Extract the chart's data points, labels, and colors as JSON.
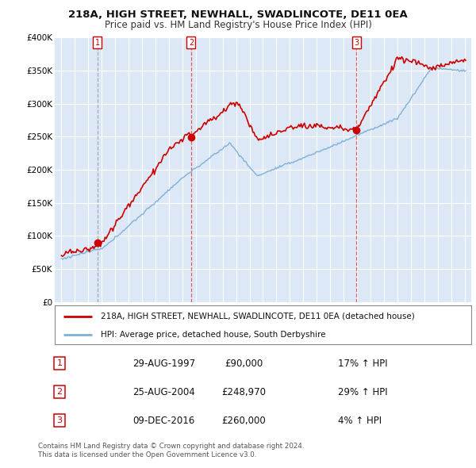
{
  "title_line1": "218A, HIGH STREET, NEWHALL, SWADLINCOTE, DE11 0EA",
  "title_line2": "Price paid vs. HM Land Registry's House Price Index (HPI)",
  "legend_line1": "218A, HIGH STREET, NEWHALL, SWADLINCOTE, DE11 0EA (detached house)",
  "legend_line2": "HPI: Average price, detached house, South Derbyshire",
  "footer_line1": "Contains HM Land Registry data © Crown copyright and database right 2024.",
  "footer_line2": "This data is licensed under the Open Government Licence v3.0.",
  "transactions": [
    {
      "num": 1,
      "date_label": "29-AUG-1997",
      "price_label": "£90,000",
      "hpi_label": "17% ↑ HPI",
      "year": 1997.66,
      "price": 90000,
      "vline_style": "dashed_gray"
    },
    {
      "num": 2,
      "date_label": "25-AUG-2004",
      "price_label": "£248,970",
      "hpi_label": "29% ↑ HPI",
      "year": 2004.65,
      "price": 248970,
      "vline_style": "dashed_red"
    },
    {
      "num": 3,
      "date_label": "09-DEC-2016",
      "price_label": "£260,000",
      "hpi_label": "4% ↑ HPI",
      "year": 2016.94,
      "price": 260000,
      "vline_style": "dashed_red"
    }
  ],
  "property_color": "#cc0000",
  "hpi_color": "#7fb0d8",
  "dashed_red_color": "#e06060",
  "dashed_gray_color": "#aaaaaa",
  "ylim": [
    0,
    400000
  ],
  "yticks": [
    0,
    50000,
    100000,
    150000,
    200000,
    250000,
    300000,
    350000,
    400000
  ],
  "ytick_labels": [
    "£0",
    "£50K",
    "£100K",
    "£150K",
    "£200K",
    "£250K",
    "£300K",
    "£350K",
    "£400K"
  ],
  "xlim_start": 1994.5,
  "xlim_end": 2025.5,
  "plot_bg_color": "#dce8f5"
}
